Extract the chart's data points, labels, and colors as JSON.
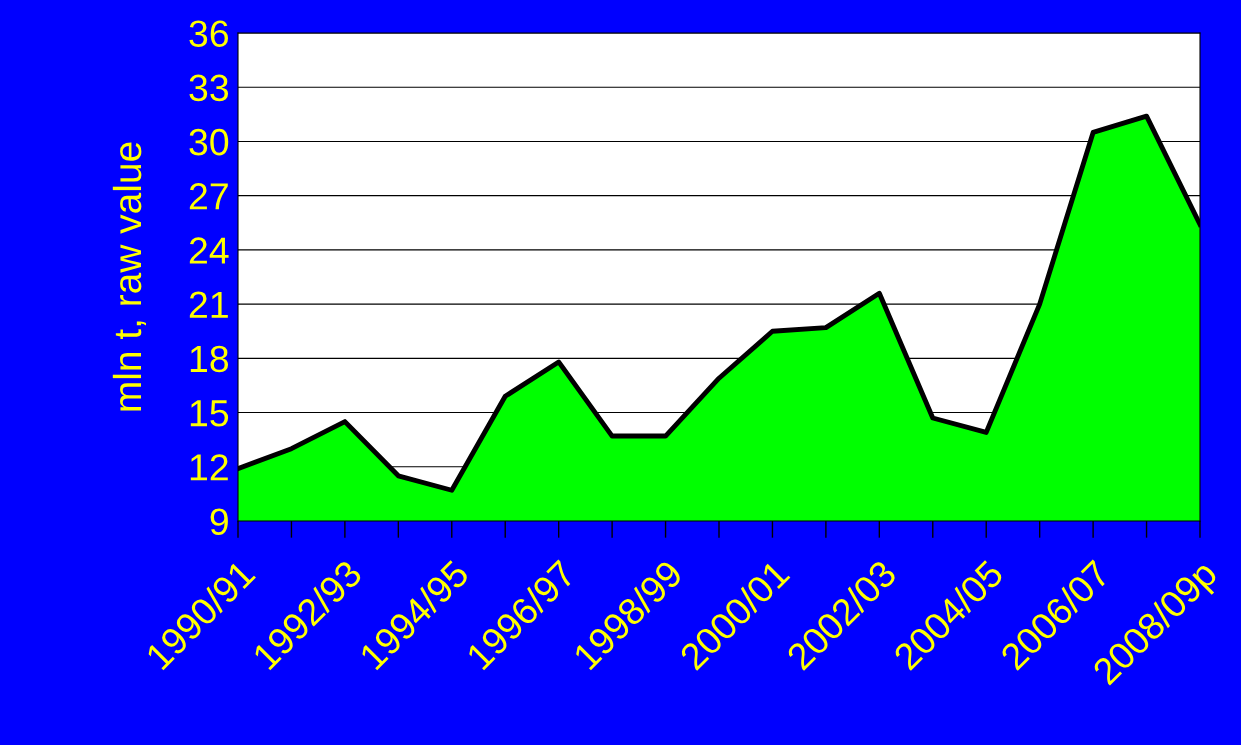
{
  "chart_data": {
    "type": "area",
    "ylabel": "mln t, raw value",
    "categories": [
      "1990/91",
      null,
      "1992/93",
      null,
      "1994/95",
      null,
      "1996/97",
      null,
      "1998/99",
      null,
      "2000/01",
      null,
      "2002/03",
      null,
      "2004/05",
      null,
      "2006/07",
      null,
      "2008/09p"
    ],
    "series": [
      {
        "color": "#00ff00",
        "values": [
          11.9,
          13.0,
          14.5,
          11.5,
          10.7,
          15.9,
          17.8,
          13.7,
          13.7,
          16.9,
          19.5,
          19.7,
          21.6,
          14.7,
          13.9,
          21.0,
          30.5,
          31.4,
          25.4
        ]
      }
    ],
    "ylim": [
      9,
      36
    ],
    "yticks": [
      9,
      12,
      15,
      18,
      21,
      24,
      27,
      30,
      33,
      36
    ],
    "grid": "y"
  }
}
